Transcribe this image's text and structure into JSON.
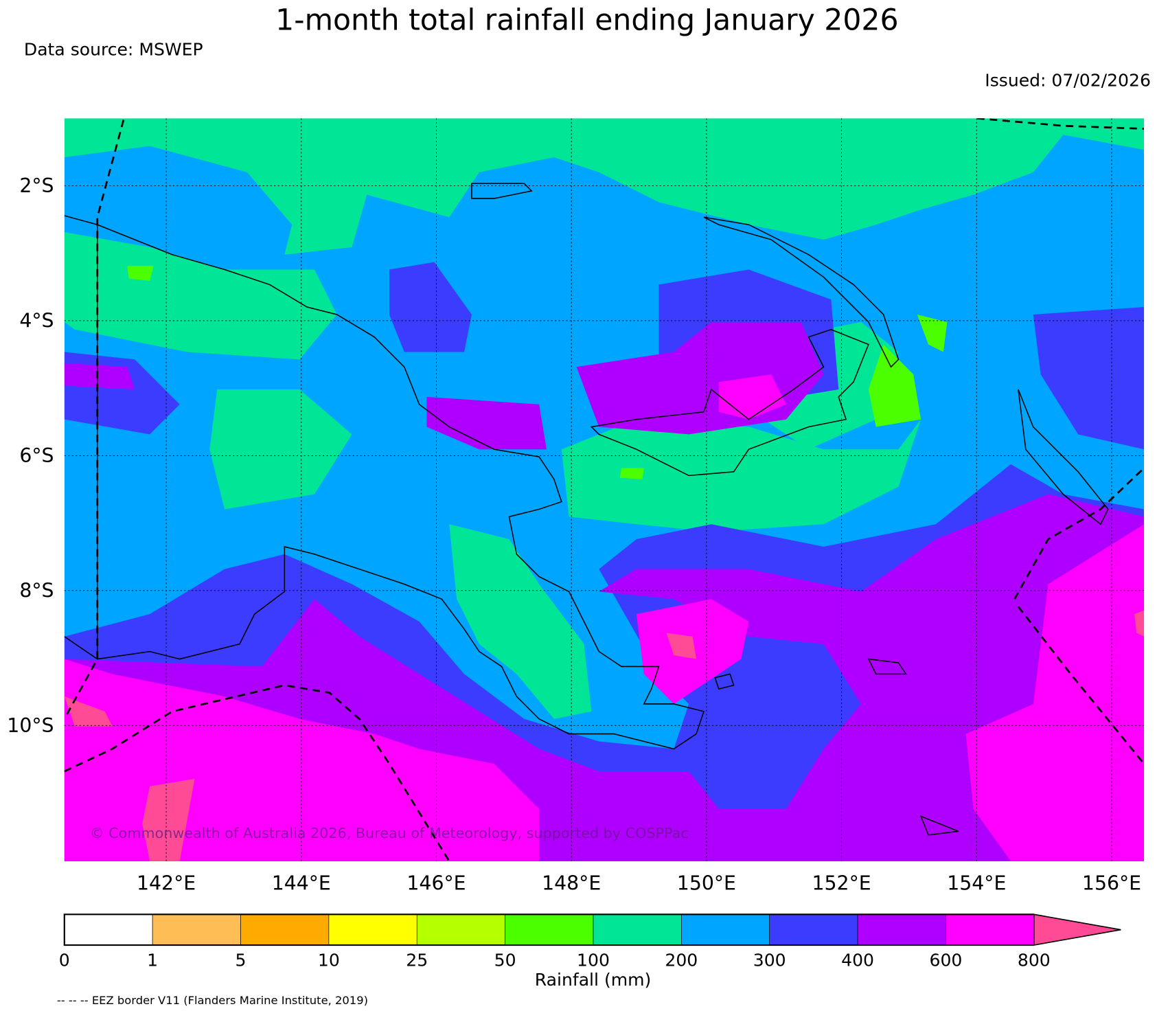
{
  "header": {
    "title": "1-month total rainfall ending January 2026",
    "data_source": "Data source: MSWEP",
    "issued": "Issued: 07/02/2026"
  },
  "copyright": "© Commonwealth of Australia 2026, Bureau of Meteorology, supported by COSPPac",
  "footnote": "-- -- -- EEZ border V11 (Flanders Marine Institute, 2019)",
  "chart_data": {
    "type": "heatmap",
    "title": "1-month total rainfall ending January 2026",
    "region": {
      "lon_range": [
        140.5,
        156.5
      ],
      "lat_range": [
        -12,
        -1
      ]
    },
    "x_ticks": [
      {
        "value": 142,
        "label": "142°E"
      },
      {
        "value": 144,
        "label": "144°E"
      },
      {
        "value": 146,
        "label": "146°E"
      },
      {
        "value": 148,
        "label": "148°E"
      },
      {
        "value": 150,
        "label": "150°E"
      },
      {
        "value": 152,
        "label": "152°E"
      },
      {
        "value": 154,
        "label": "154°E"
      },
      {
        "value": 156,
        "label": "156°E"
      }
    ],
    "y_ticks": [
      {
        "value": -2,
        "label": "2°S"
      },
      {
        "value": -4,
        "label": "4°S"
      },
      {
        "value": -6,
        "label": "6°S"
      },
      {
        "value": -8,
        "label": "8°S"
      },
      {
        "value": -10,
        "label": "10°S"
      }
    ],
    "colorbar": {
      "label": "Rainfall (mm)",
      "tick_labels": [
        "0",
        "1",
        "5",
        "10",
        "25",
        "50",
        "100",
        "200",
        "300",
        "400",
        "600",
        "800"
      ],
      "colors": [
        "#FFFFFF",
        "#FFBE55",
        "#FFAA00",
        "#FFFF00",
        "#B4FF00",
        "#4BFF00",
        "#00E696",
        "#00A5FF",
        "#3C3CFF",
        "#AF00FF",
        "#FF00FF"
      ],
      "extend_color": "#FF4B96"
    },
    "grid": true
  }
}
